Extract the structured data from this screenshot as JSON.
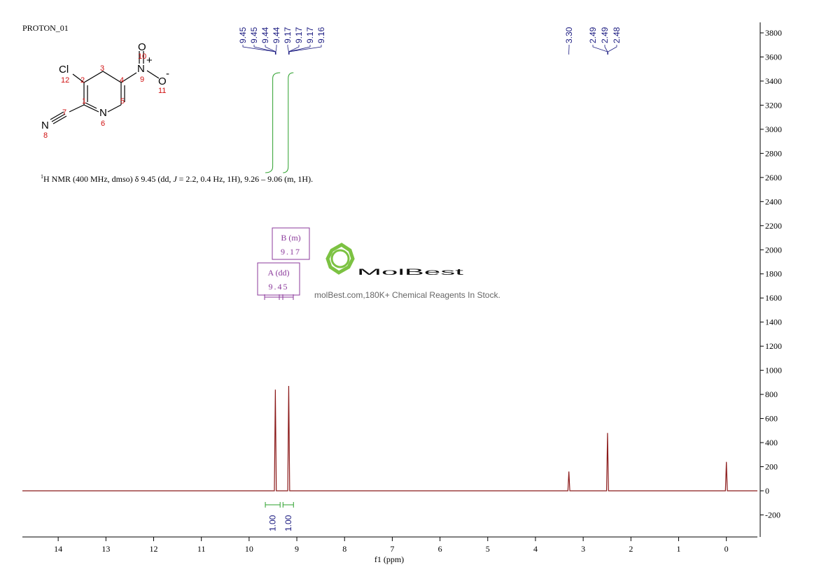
{
  "chart_data": {
    "type": "spectrum",
    "title": "PROTON_01",
    "annotation": [
      "1",
      "H NMR (400 MHz, dmso) δ 9.45 (dd, ",
      "J",
      " = 2.2, 0.4 Hz, 1H), 9.26 – 9.06 (m, 1H)."
    ],
    "x_label": "f1 (ppm)",
    "x": [
      14.75,
      9.47,
      9.45,
      9.43,
      9.19,
      9.17,
      9.15,
      3.32,
      3.3,
      3.28,
      2.51,
      2.49,
      2.47,
      0.02,
      0,
      -0.02,
      -0.65
    ],
    "values": [
      0,
      0,
      840,
      0,
      0,
      870,
      0,
      0,
      160,
      0,
      0,
      480,
      0,
      0,
      240,
      0,
      0
    ],
    "color": "#8b1a1a",
    "xlim": [
      14.75,
      -0.65
    ],
    "xticks": [
      14,
      13,
      12,
      11,
      10,
      9,
      8,
      7,
      6,
      5,
      4,
      3,
      2,
      1,
      0
    ],
    "ylim": [
      -383,
      3887
    ],
    "yticks": [
      -200,
      0,
      200,
      400,
      600,
      800,
      1000,
      1200,
      1400,
      1600,
      1800,
      2000,
      2200,
      2400,
      2600,
      2800,
      3000,
      3200,
      3400,
      3600,
      3800
    ],
    "peak_labels": [
      9.45,
      9.45,
      9.44,
      9.44,
      9.17,
      9.17,
      9.17,
      9.16,
      {
        "value": 3.3,
        "label": "3.30"
      },
      2.49,
      2.49,
      2.48
    ],
    "peak_label_color": "#1a1a80",
    "integrals": {
      "from": [
        9.66,
        9.29
      ],
      "to": [
        9.35,
        9.07
      ],
      "values": [
        1,
        1
      ],
      "value_labels": [
        "1.00",
        "1.00"
      ],
      "color": "#2ca02c"
    },
    "multiplets": [
      {
        "name": "B (m)",
        "shift": "9.17"
      },
      {
        "name": "A (dd)",
        "shift": "9.45"
      }
    ],
    "multiplet_color": "#8b3a9b",
    "watermark": {
      "brand": "MolBest",
      "tagline": "molBest.com,180K+ Chemical Reagents In Stock."
    },
    "structure": {
      "atoms": [
        "Cl",
        "N",
        "N",
        "N",
        "O",
        "O"
      ],
      "numbers": [
        "12",
        "2",
        "3",
        "4",
        "9",
        "10",
        "11",
        "1",
        "5",
        "6",
        "7",
        "8"
      ],
      "charges": [
        "+",
        "-"
      ]
    }
  }
}
